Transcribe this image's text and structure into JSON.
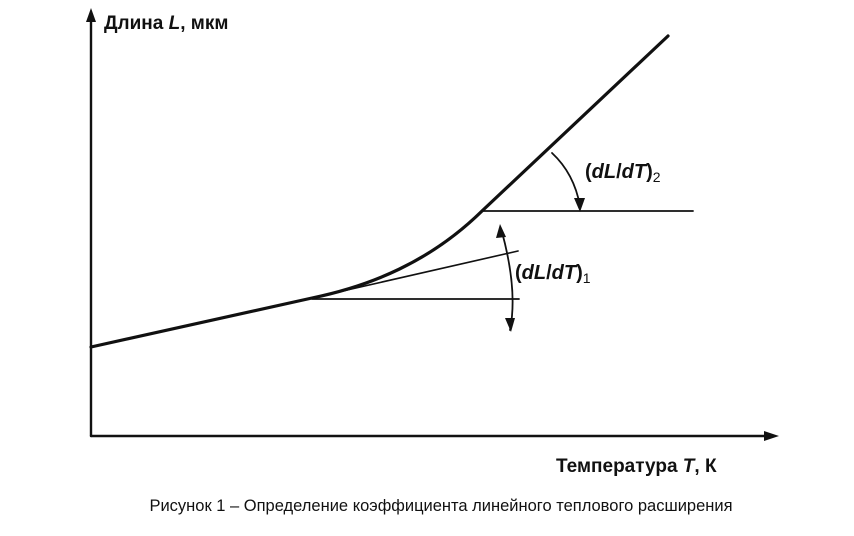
{
  "figure": {
    "y_axis_label_prefix": "Длина ",
    "y_axis_label_var": "L",
    "y_axis_label_suffix": ", мкм",
    "x_axis_label_prefix": "Температура ",
    "x_axis_label_var": "T",
    "x_axis_label_suffix": ", К",
    "angle_label_1": {
      "open": "(",
      "d1": "d",
      "L": "L",
      "slash": "/",
      "d2": "d",
      "T": "T",
      "close": ")",
      "sub": "1"
    },
    "angle_label_2": {
      "open": "(",
      "d1": "d",
      "L": "L",
      "slash": "/",
      "d2": "d",
      "T": "T",
      "close": ")",
      "sub": "2"
    },
    "caption": "Рисунок 1 – Определение коэффициента линейного теплового расширения"
  }
}
